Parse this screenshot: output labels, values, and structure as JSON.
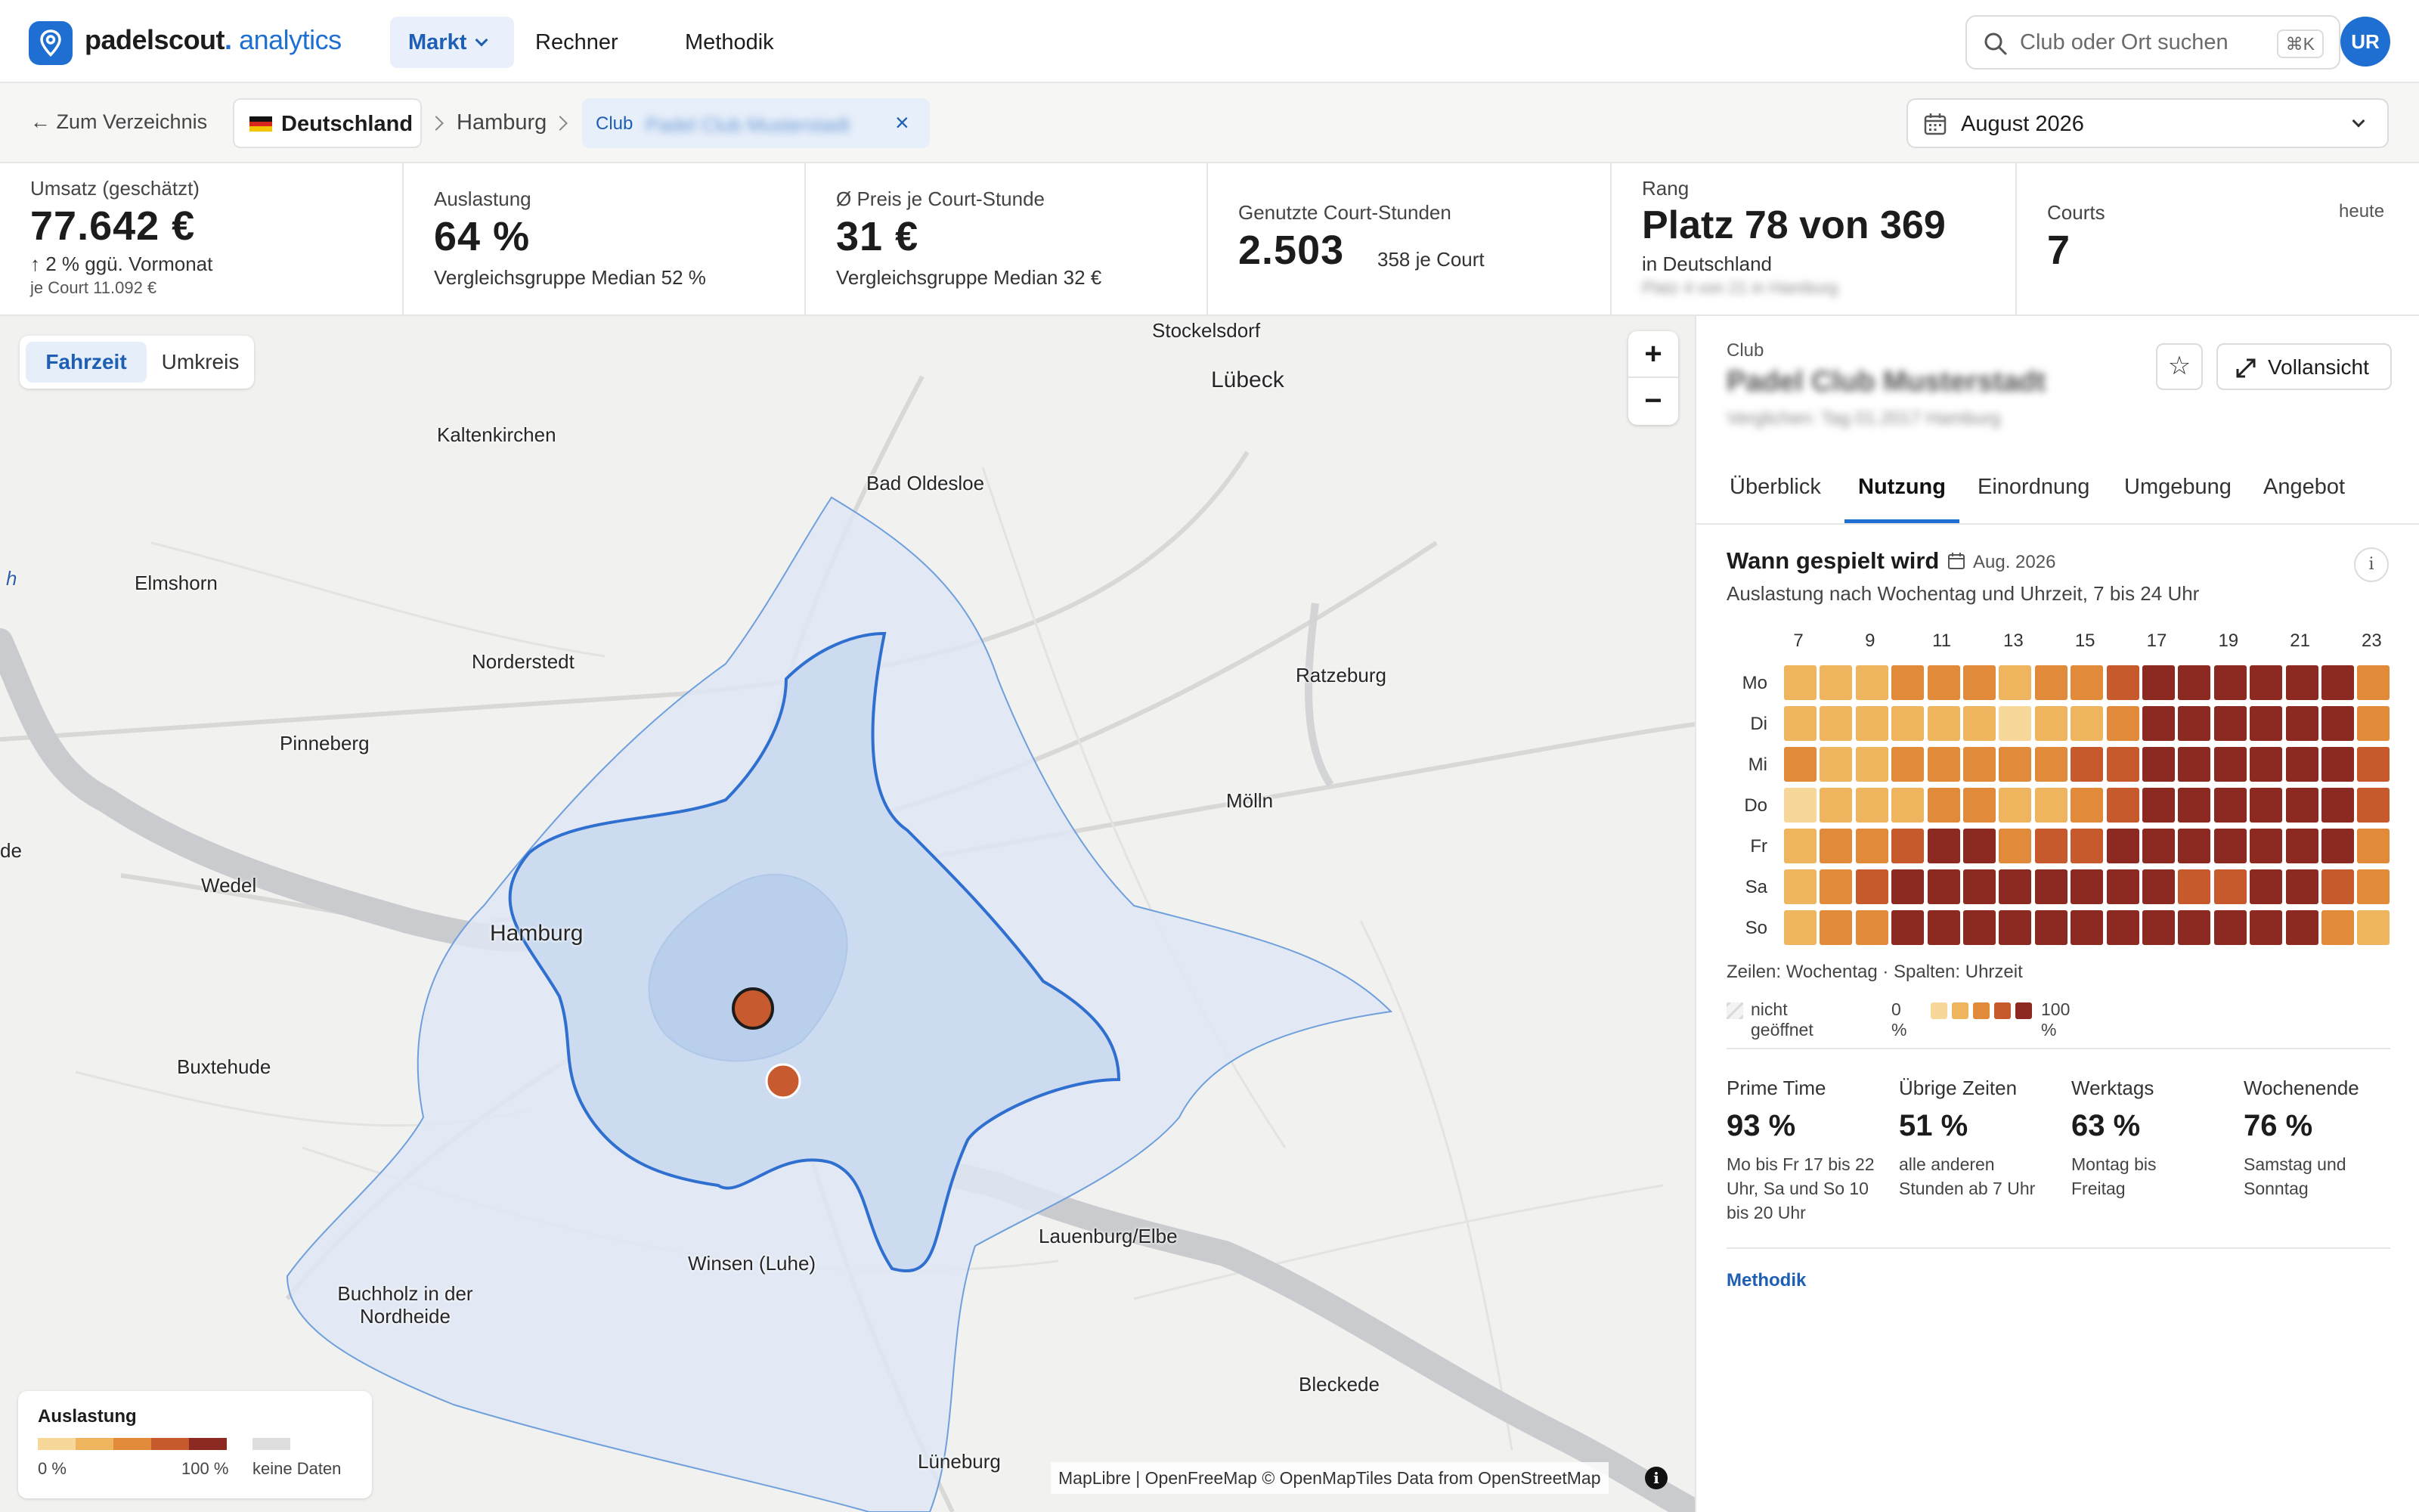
{
  "app": {
    "logo_brand": "padelscout",
    "logo_dot": ".",
    "logo_suffix": "analytics",
    "brand_color": "#1e6fd1"
  },
  "nav": {
    "items": [
      {
        "label": "Markt",
        "active": true,
        "has_dropdown": true
      },
      {
        "label": "Rechner",
        "active": false,
        "has_dropdown": true
      },
      {
        "label": "Methodik",
        "active": false,
        "has_dropdown": false
      }
    ]
  },
  "search": {
    "placeholder": "Club oder Ort suchen",
    "shortcut": "⌘K",
    "icon": "search-icon"
  },
  "user": {
    "initials": "UR"
  },
  "breadcrumb": {
    "back_label": "Zum Verzeichnis",
    "country": "Deutschland",
    "city": "Hamburg",
    "club_label": "Club",
    "club_name": "Padel Club Musterstadt",
    "clear_icon": "close-icon"
  },
  "period": {
    "label": "August 2026"
  },
  "kpis": {
    "revenue": {
      "label": "Umsatz (geschätzt)",
      "value": "77.642 €",
      "change": "↑ 2 % ggü. Vormonat",
      "per_court": "je Court 11.092 €"
    },
    "utilization": {
      "label": "Auslastung",
      "value": "64 %",
      "sub": "Vergleichsgruppe Median 52 %"
    },
    "price": {
      "label": "Ø Preis je Court-Stunde",
      "value": "31 €",
      "sub": "Vergleichsgruppe Median 32 €"
    },
    "hours": {
      "label": "Genutzte Court-Stunden",
      "value": "2.503",
      "sub": "358 je Court"
    },
    "rank": {
      "label": "Rang",
      "value": "Platz 78 von 369",
      "sub": "in Deutschland",
      "sub2": "Platz 4 von 21 in Hamburg"
    },
    "courts": {
      "label": "Courts",
      "value": "7",
      "note": "heute"
    }
  },
  "map": {
    "mode_options": [
      "Fahrzeit",
      "Umkreis"
    ],
    "mode_selected": "Fahrzeit",
    "zoom_in": "+",
    "zoom_out": "−",
    "places": [
      "Stockelsdorf",
      "Lübeck",
      "Kaltenkirchen",
      "Bad Oldesloe",
      "Elmshorn",
      "Norderstedt",
      "Ratzeburg",
      "Pinneberg",
      "Mölln",
      "Wedel",
      "Hamburg",
      "Buxtehude",
      "Lauenburg/Elbe",
      "Winsen (Luhe)",
      "Buchholz in der Nordheide",
      "Bleckede",
      "Lüneburg",
      "h",
      "de"
    ],
    "legend": {
      "title": "Auslastung",
      "min": "0 %",
      "max": "100 %",
      "no_data": "keine Daten"
    },
    "attribution": "MapLibre | OpenFreeMap © OpenMapTiles Data from OpenStreetMap",
    "scale_colors": [
      "#f8d89a",
      "#efb55e",
      "#e08a3a",
      "#c65a2c",
      "#8c2a22"
    ],
    "no_data_color": "#dedede",
    "isochrone_color": "#1e6fd1"
  },
  "panel": {
    "club_label": "Club",
    "club_name": "Padel Club Musterstadt",
    "club_sub": "Verglichen: Tag 01.2017 Hamburg",
    "fullview_label": "Vollansicht",
    "tabs": [
      "Überblick",
      "Nutzung",
      "Einordnung",
      "Umgebung",
      "Angebot"
    ],
    "active_tab": "Nutzung",
    "section_title": "Wann gespielt wird",
    "section_date": "Aug. 2026",
    "section_sub": "Auslastung nach Wochentag und Uhrzeit, 7 bis 24 Uhr",
    "info": "i",
    "heatmap": {
      "hour_labels": [
        "7",
        "9",
        "11",
        "13",
        "15",
        "17",
        "19",
        "21",
        "23"
      ],
      "days": [
        "Mo",
        "Di",
        "Mi",
        "Do",
        "Fr",
        "Sa",
        "So"
      ],
      "levels_0_to_4": [
        [
          1,
          1,
          1,
          2,
          2,
          2,
          1,
          2,
          2,
          3,
          4,
          4,
          4,
          4,
          4,
          4,
          2
        ],
        [
          1,
          1,
          1,
          1,
          1,
          1,
          0,
          1,
          1,
          2,
          4,
          4,
          4,
          4,
          4,
          4,
          2
        ],
        [
          2,
          1,
          1,
          2,
          2,
          2,
          2,
          2,
          3,
          3,
          4,
          4,
          4,
          4,
          4,
          4,
          3
        ],
        [
          0,
          1,
          1,
          1,
          2,
          2,
          1,
          1,
          2,
          3,
          4,
          4,
          4,
          4,
          4,
          4,
          3
        ],
        [
          1,
          2,
          2,
          3,
          4,
          4,
          2,
          3,
          3,
          4,
          4,
          4,
          4,
          4,
          4,
          4,
          2
        ],
        [
          1,
          2,
          3,
          4,
          4,
          4,
          4,
          4,
          4,
          4,
          4,
          3,
          3,
          4,
          4,
          3,
          2
        ],
        [
          1,
          2,
          2,
          4,
          4,
          4,
          4,
          4,
          4,
          4,
          4,
          4,
          4,
          4,
          4,
          2,
          1
        ]
      ],
      "caption": "Zeilen: Wochentag · Spalten: Uhrzeit",
      "legend_closed": "nicht geöffnet",
      "legend_min": "0 %",
      "legend_max": "100 %"
    },
    "stats": [
      {
        "label": "Prime Time",
        "value": "93 %",
        "desc": "Mo bis Fr 17 bis 22 Uhr, Sa und So 10 bis 20 Uhr"
      },
      {
        "label": "Übrige Zeiten",
        "value": "51 %",
        "desc": "alle anderen Stunden ab 7 Uhr"
      },
      {
        "label": "Werktags",
        "value": "63 %",
        "desc": "Montag bis Freitag"
      },
      {
        "label": "Wochenende",
        "value": "76 %",
        "desc": "Samstag und Sonntag"
      }
    ],
    "methodik_link": "Methodik"
  }
}
